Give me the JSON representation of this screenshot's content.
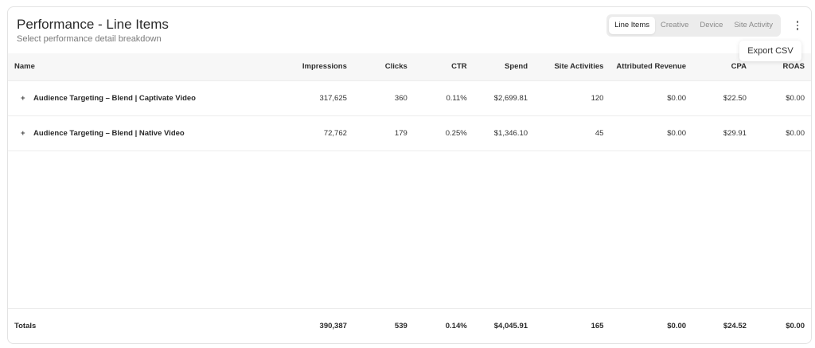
{
  "header": {
    "title": "Performance - Line Items",
    "subtitle": "Select performance detail breakdown"
  },
  "tabs": [
    {
      "label": "Line Items",
      "active": true
    },
    {
      "label": "Creative",
      "active": false
    },
    {
      "label": "Device",
      "active": false
    },
    {
      "label": "Site Activity",
      "active": false
    }
  ],
  "menu": {
    "icon": "kebab-vertical-icon",
    "items": [
      {
        "label": "Export CSV"
      }
    ]
  },
  "table": {
    "columns": [
      "Name",
      "Impressions",
      "Clicks",
      "CTR",
      "Spend",
      "Site Activities",
      "Attributed Revenue",
      "CPA",
      "ROAS"
    ],
    "rows": [
      {
        "expand_icon": "+",
        "name": "Audience Targeting – Blend | Captivate Video",
        "impressions": "317,625",
        "clicks": "360",
        "ctr": "0.11%",
        "spend": "$2,699.81",
        "site_activities": "120",
        "attributed_revenue": "$0.00",
        "cpa": "$22.50",
        "roas": "$0.00"
      },
      {
        "expand_icon": "+",
        "name": "Audience Targeting – Blend | Native Video",
        "impressions": "72,762",
        "clicks": "179",
        "ctr": "0.25%",
        "spend": "$1,346.10",
        "site_activities": "45",
        "attributed_revenue": "$0.00",
        "cpa": "$29.91",
        "roas": "$0.00"
      }
    ],
    "totals": {
      "label": "Totals",
      "impressions": "390,387",
      "clicks": "539",
      "ctr": "0.14%",
      "spend": "$4,045.91",
      "site_activities": "165",
      "attributed_revenue": "$0.00",
      "cpa": "$24.52",
      "roas": "$0.00"
    }
  }
}
